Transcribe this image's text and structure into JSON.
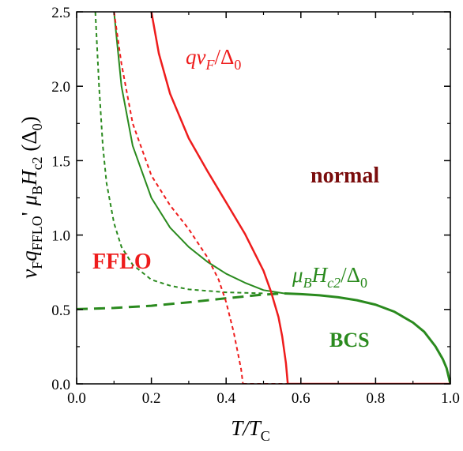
{
  "chart_data": {
    "type": "line",
    "xlim": [
      0.0,
      1.0
    ],
    "ylim": [
      0.0,
      2.5
    ],
    "xticks": [
      "0.0",
      "0.2",
      "0.4",
      "0.6",
      "0.8",
      "1.0"
    ],
    "yticks": [
      "0.0",
      "0.5",
      "1.0",
      "1.5",
      "2.0",
      "2.5"
    ],
    "xlabel": {
      "main": "T/T",
      "sub": "C"
    },
    "ylabel": {
      "lower": {
        "prefix": "v",
        "sub1": "F",
        "mid": "q",
        "sub2": "FFLO",
        "suffix": "'"
      },
      "upper": {
        "mu": "μ",
        "sub1": "B",
        "mid": "H",
        "sub2": "c2",
        "suffix": " (Δ",
        "sub3": "0",
        "close": ")"
      }
    },
    "annotations": {
      "normal": "normal",
      "fflo": "FFLO",
      "bcs": "BCS",
      "q_label": {
        "a": "qv",
        "sub": "F",
        "b": "/Δ",
        "sub2": "0"
      },
      "h_label": {
        "mu": "μ",
        "sub1": "B",
        "mid": "H",
        "sub2": "c2",
        "b": "/Δ",
        "sub3": "0"
      }
    },
    "series": [
      {
        "color": "#2a8a1e",
        "style": "solid",
        "width": 3,
        "x": [
          0.556,
          0.6,
          0.65,
          0.7,
          0.75,
          0.8,
          0.85,
          0.9,
          0.93,
          0.96,
          0.98,
          0.99,
          1.0
        ],
        "y": [
          0.608,
          0.603,
          0.595,
          0.582,
          0.562,
          0.532,
          0.485,
          0.412,
          0.35,
          0.252,
          0.165,
          0.105,
          0.0
        ]
      },
      {
        "color": "#2a8a1e",
        "style": "dashed",
        "width": 3,
        "x": [
          0.0,
          0.1,
          0.2,
          0.3,
          0.4,
          0.5,
          0.556
        ],
        "y": [
          0.502,
          0.51,
          0.525,
          0.548,
          0.575,
          0.6,
          0.608
        ]
      },
      {
        "color": "#2a8a1e",
        "style": "solid",
        "width": 2,
        "x": [
          0.1,
          0.12,
          0.15,
          0.2,
          0.25,
          0.3,
          0.35,
          0.4,
          0.45,
          0.5,
          0.556
        ],
        "y": [
          2.5,
          2.0,
          1.6,
          1.25,
          1.05,
          0.92,
          0.82,
          0.74,
          0.68,
          0.63,
          0.608
        ]
      },
      {
        "color": "#2a8a1e",
        "style": "dotted",
        "width": 2,
        "x": [
          0.05,
          0.06,
          0.07,
          0.08,
          0.1,
          0.12,
          0.15,
          0.2,
          0.25,
          0.3,
          0.4,
          0.5
        ],
        "y": [
          2.5,
          2.0,
          1.6,
          1.35,
          1.08,
          0.92,
          0.8,
          0.7,
          0.66,
          0.635,
          0.615,
          0.608
        ]
      },
      {
        "color": "#ee1c1c",
        "style": "solid",
        "width": 2.5,
        "x": [
          0.2,
          0.22,
          0.25,
          0.3,
          0.35,
          0.4,
          0.45,
          0.5,
          0.52,
          0.54,
          0.55,
          0.56,
          0.565
        ],
        "y": [
          2.5,
          2.22,
          1.95,
          1.65,
          1.43,
          1.22,
          1.01,
          0.76,
          0.62,
          0.45,
          0.32,
          0.14,
          0.0
        ]
      },
      {
        "color": "#ee1c1c",
        "style": "solid",
        "width": 2.5,
        "x": [
          0.565,
          1.0
        ],
        "y": [
          0.0,
          0.0
        ]
      },
      {
        "color": "#ee1c1c",
        "style": "dotted",
        "width": 2,
        "x": [
          0.1,
          0.12,
          0.15,
          0.2,
          0.25,
          0.3,
          0.35,
          0.38,
          0.4,
          0.42,
          0.44,
          0.445
        ],
        "y": [
          2.5,
          2.15,
          1.75,
          1.4,
          1.2,
          1.04,
          0.85,
          0.7,
          0.55,
          0.35,
          0.1,
          0.0
        ]
      },
      {
        "color": "#ee1c1c",
        "style": "dotted",
        "width": 2,
        "x": [
          0.445,
          0.565
        ],
        "y": [
          0.0,
          0.0
        ]
      }
    ]
  }
}
